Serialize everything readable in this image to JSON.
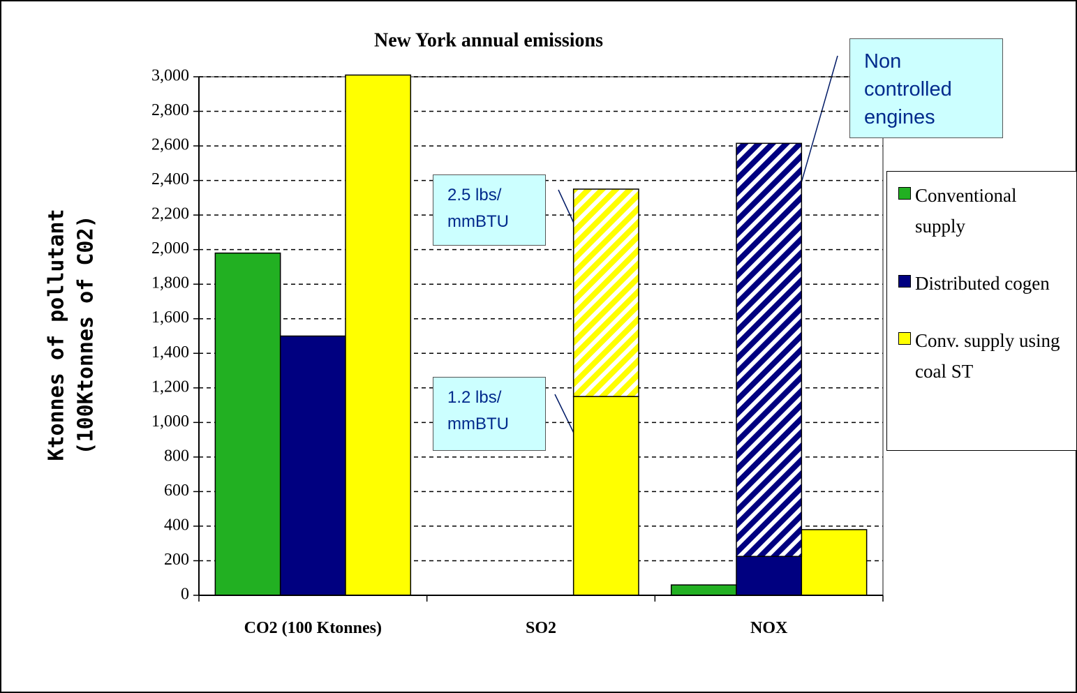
{
  "chart_data": {
    "type": "bar",
    "title": "New York annual emissions",
    "ylabel": [
      "Ktonnes of pollutant",
      "(100Ktonnes of C02)"
    ],
    "categories": [
      "CO2 (100 Ktonnes)",
      "SO2",
      "NOX"
    ],
    "series": [
      {
        "name": "Conventional supply",
        "color": "#22b022",
        "values": [
          1980,
          0,
          60
        ]
      },
      {
        "name": "Distributed cogen",
        "color": "#000080",
        "values": [
          1500,
          0,
          225
        ]
      },
      {
        "name": "Conv. supply using coal ST",
        "color": "#ffff00",
        "values": [
          3010,
          1150,
          380
        ]
      },
      {
        "color": "#ffff00",
        "hatch": true,
        "stack_on": 2,
        "values": [
          null,
          1200,
          null
        ]
      },
      {
        "color": "#000080",
        "hatch": true,
        "stack_on": 1,
        "values": [
          null,
          null,
          2390
        ]
      }
    ],
    "ylim": [
      0,
      3000
    ],
    "yticks": [
      0,
      200,
      400,
      600,
      800,
      {
        "value": 1000,
        "label": "1,000"
      },
      {
        "value": 1200,
        "label": "1,200"
      },
      {
        "value": 1400,
        "label": "1,400"
      },
      {
        "value": 1600,
        "label": "1,600"
      },
      {
        "value": 1800,
        "label": "1,800"
      },
      {
        "value": 2000,
        "label": "2,000"
      },
      {
        "value": 2200,
        "label": "2,200"
      },
      {
        "value": 2400,
        "label": "2,400"
      },
      {
        "value": 2600,
        "label": "2,600"
      },
      {
        "value": 2800,
        "label": "2,800"
      },
      {
        "value": 3000,
        "label": "3,000"
      }
    ],
    "grid": true,
    "legend": "right",
    "annotations": [
      "Non controlled engines",
      "2.5 lbs/ mmBTU",
      "1.2 lbs/ mmBTU"
    ]
  }
}
